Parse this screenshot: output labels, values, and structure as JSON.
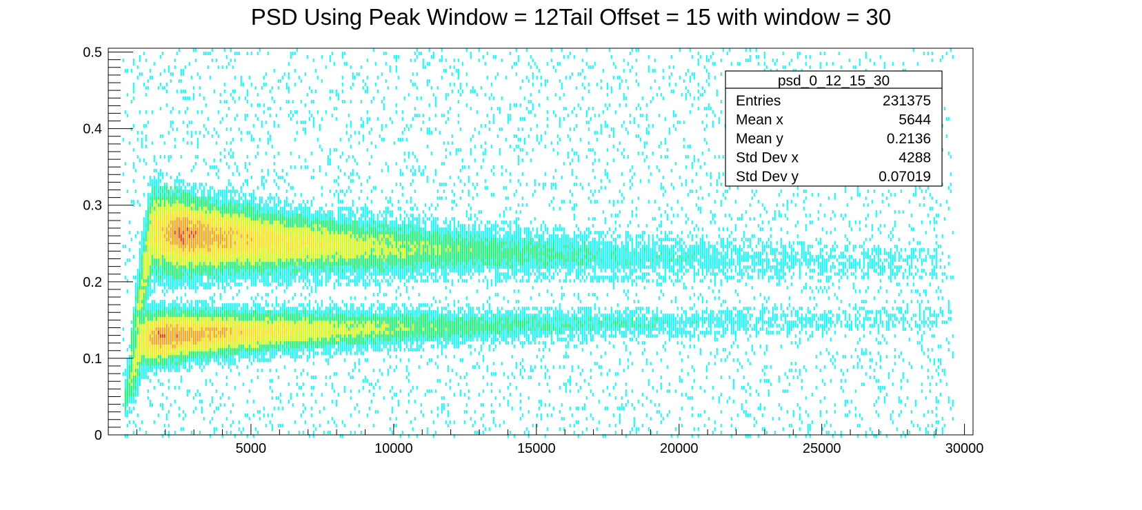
{
  "chart_data": {
    "type": "heatmap",
    "title": "PSD Using Peak Window = 12Tail Offset = 15 with window = 30",
    "xlabel": "",
    "ylabel": "",
    "xlim": [
      0,
      30300
    ],
    "ylim": [
      0,
      0.505
    ],
    "x_ticks": [
      {
        "value": 5000,
        "label": "5000"
      },
      {
        "value": 10000,
        "label": "10000"
      },
      {
        "value": 15000,
        "label": "15000"
      },
      {
        "value": 20000,
        "label": "20000"
      },
      {
        "value": 25000,
        "label": "25000"
      },
      {
        "value": 30000,
        "label": "30000"
      }
    ],
    "y_ticks": [
      {
        "value": 0,
        "label": "0"
      },
      {
        "value": 0.1,
        "label": "0.1"
      },
      {
        "value": 0.2,
        "label": "0.2"
      },
      {
        "value": 0.3,
        "label": "0.3"
      },
      {
        "value": 0.4,
        "label": "0.4"
      },
      {
        "value": 0.5,
        "label": "0.5"
      }
    ],
    "colormap": [
      "#00ffff",
      "#00ff66",
      "#ccff00",
      "#ffdd00",
      "#ff9900",
      "#ff2200"
    ],
    "bands": [
      {
        "name": "upper",
        "x_start": 1200,
        "x_end": 29000,
        "y_center": 0.275,
        "y_center_end": 0.225,
        "width_start": 0.14,
        "width_end": 0.03,
        "peak_x": 2500,
        "max_level": 5
      },
      {
        "name": "lower",
        "x_start": 900,
        "x_end": 29500,
        "y_center": 0.125,
        "y_center_end": 0.155,
        "width_start": 0.09,
        "width_end": 0.02,
        "peak_x": 1800,
        "max_level": 5
      }
    ],
    "stats": {
      "name": "psd_0_12_15_30",
      "rows": [
        {
          "label": "Entries",
          "value": "231375"
        },
        {
          "label": "Mean x",
          "value": "5644"
        },
        {
          "label": "Mean y",
          "value": "0.2136"
        },
        {
          "label": "Std Dev x",
          "value": "4288"
        },
        {
          "label": "Std Dev y",
          "value": "0.07019"
        }
      ]
    }
  }
}
